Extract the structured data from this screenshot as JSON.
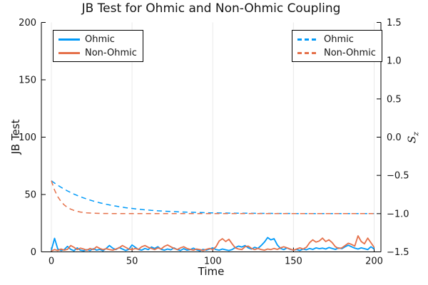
{
  "title": "JB Test for Ohmic and Non-Ohmic Coupling",
  "colors": {
    "ohmic": "#009AF9",
    "non_ohmic": "#E5714B",
    "grid": "#E9E9E9",
    "axis": "#000000",
    "text": "#141414"
  },
  "legends": {
    "left": {
      "items": [
        {
          "label": "Ohmic",
          "style": "solid",
          "color_key": "ohmic"
        },
        {
          "label": "Non-Ohmic",
          "style": "solid",
          "color_key": "non_ohmic"
        }
      ]
    },
    "right": {
      "items": [
        {
          "label": "Ohmic",
          "style": "dashed",
          "color_key": "ohmic"
        },
        {
          "label": "Non-Ohmic",
          "style": "dashed",
          "color_key": "non_ohmic"
        }
      ]
    }
  },
  "chart_data": {
    "type": "line",
    "title": "JB Test for Ohmic and Non-Ohmic Coupling",
    "xlabel": "Time",
    "ylabel_left": "JB Test",
    "ylabel_right": "S_z",
    "ylabel_right_main": "S",
    "ylabel_right_sub": "z",
    "xlim": [
      0,
      200
    ],
    "ylim_left": [
      0,
      200
    ],
    "ylim_right": [
      -1.5,
      1.5
    ],
    "grid": "vertical-only",
    "legend_positions": [
      "top-left",
      "top-right-inner"
    ],
    "xticks": [
      0,
      50,
      100,
      150,
      200
    ],
    "xtick_labels": [
      "0",
      "50",
      "100",
      "150",
      "200"
    ],
    "yticks_left": [
      0,
      50,
      100,
      150,
      200
    ],
    "ytick_left_labels": [
      "0",
      "50",
      "100",
      "150",
      "200"
    ],
    "yticks_right": [
      -1.5,
      -1.0,
      -0.5,
      0.0,
      0.5,
      1.0,
      1.5
    ],
    "ytick_right_labels": [
      "−1.5",
      "−1.0",
      "−0.5",
      "0.0",
      "0.5",
      "1.0",
      "1.5"
    ],
    "x": [
      0,
      2,
      4,
      6,
      8,
      10,
      12,
      14,
      16,
      18,
      20,
      22,
      24,
      26,
      28,
      30,
      32,
      34,
      36,
      38,
      40,
      42,
      44,
      46,
      48,
      50,
      52,
      54,
      56,
      58,
      60,
      62,
      64,
      66,
      68,
      70,
      72,
      74,
      76,
      78,
      80,
      82,
      84,
      86,
      88,
      90,
      92,
      94,
      96,
      98,
      100,
      102,
      104,
      106,
      108,
      110,
      112,
      114,
      116,
      118,
      120,
      122,
      124,
      126,
      128,
      130,
      132,
      134,
      136,
      138,
      140,
      142,
      144,
      146,
      148,
      150,
      152,
      154,
      156,
      158,
      160,
      162,
      164,
      166,
      168,
      170,
      172,
      174,
      176,
      178,
      180,
      182,
      184,
      186,
      188,
      190,
      192,
      194,
      196,
      198,
      200
    ],
    "series": [
      {
        "name": "Ohmic",
        "axis": "left",
        "style": "solid",
        "color_key": "ohmic",
        "values": [
          1.5,
          11.8,
          2.5,
          1.2,
          2.0,
          4.8,
          2.2,
          1.0,
          3.5,
          1.5,
          1.0,
          2.0,
          1.2,
          2.8,
          1.5,
          2.2,
          1.0,
          3.0,
          5.5,
          3.2,
          2.0,
          3.8,
          2.5,
          1.2,
          2.2,
          6.0,
          4.0,
          2.0,
          1.5,
          3.0,
          2.0,
          4.2,
          3.0,
          4.5,
          2.2,
          1.5,
          2.5,
          1.8,
          3.5,
          2.0,
          1.2,
          2.8,
          1.5,
          2.0,
          3.2,
          1.8,
          1.0,
          2.2,
          1.5,
          2.5,
          3.5,
          2.0,
          1.5,
          2.5,
          1.8,
          1.2,
          2.0,
          3.8,
          5.0,
          4.2,
          5.5,
          3.5,
          2.5,
          4.0,
          3.0,
          5.5,
          8.5,
          12.5,
          10.5,
          11.5,
          6.0,
          3.0,
          2.0,
          3.5,
          2.2,
          1.5,
          2.0,
          1.2,
          2.5,
          1.8,
          3.0,
          2.2,
          3.5,
          2.8,
          3.2,
          2.5,
          3.8,
          3.0,
          2.2,
          3.5,
          2.8,
          4.5,
          5.8,
          4.5,
          3.2,
          2.5,
          3.5,
          2.8,
          2.0,
          4.5,
          2.5
        ]
      },
      {
        "name": "Non-Ohmic",
        "axis": "left",
        "style": "solid",
        "color_key": "non_ohmic",
        "values": [
          0.8,
          2.0,
          1.2,
          2.5,
          1.5,
          2.2,
          5.5,
          4.0,
          2.0,
          3.2,
          2.5,
          1.5,
          3.0,
          2.0,
          4.5,
          3.0,
          2.0,
          2.8,
          2.0,
          1.5,
          2.5,
          3.5,
          5.5,
          4.0,
          2.5,
          2.0,
          3.0,
          2.2,
          4.5,
          5.5,
          4.0,
          3.0,
          2.0,
          3.5,
          2.5,
          4.8,
          6.0,
          4.5,
          3.0,
          2.0,
          3.5,
          4.5,
          3.0,
          2.2,
          1.5,
          2.5,
          2.0,
          1.2,
          2.2,
          3.0,
          2.0,
          4.5,
          9.5,
          11.5,
          9.0,
          11.0,
          7.0,
          3.5,
          2.5,
          2.0,
          4.5,
          5.0,
          3.0,
          2.0,
          3.0,
          2.0,
          1.5,
          2.5,
          2.0,
          3.0,
          2.2,
          3.5,
          4.5,
          3.5,
          2.5,
          1.5,
          2.5,
          3.5,
          2.5,
          4.0,
          8.0,
          10.5,
          8.5,
          9.5,
          12.0,
          9.0,
          10.5,
          8.0,
          4.5,
          3.0,
          3.5,
          5.5,
          7.5,
          6.5,
          5.0,
          14.0,
          9.0,
          7.0,
          12.0,
          8.0,
          4.0
        ]
      },
      {
        "name": "Ohmic",
        "axis": "right",
        "style": "dashed",
        "color_key": "ohmic",
        "values": [
          -0.57,
          -0.601,
          -0.629,
          -0.656,
          -0.68,
          -0.703,
          -0.724,
          -0.744,
          -0.762,
          -0.779,
          -0.795,
          -0.809,
          -0.823,
          -0.836,
          -0.847,
          -0.858,
          -0.868,
          -0.878,
          -0.886,
          -0.895,
          -0.902,
          -0.909,
          -0.916,
          -0.922,
          -0.927,
          -0.932,
          -0.937,
          -0.942,
          -0.946,
          -0.95,
          -0.953,
          -0.957,
          -0.96,
          -0.963,
          -0.965,
          -0.968,
          -0.97,
          -0.972,
          -0.974,
          -0.976,
          -0.978,
          -0.979,
          -0.981,
          -0.982,
          -0.983,
          -0.985,
          -0.986,
          -0.987,
          -0.988,
          -0.989,
          -0.989,
          -0.99,
          -0.991,
          -0.992,
          -0.992,
          -0.993,
          -0.993,
          -0.994,
          -0.994,
          -0.995,
          -0.995,
          -0.995,
          -0.996,
          -0.996,
          -0.996,
          -0.997,
          -0.997,
          -0.997,
          -0.997,
          -0.998,
          -0.998,
          -0.998,
          -0.998,
          -0.998,
          -0.998,
          -0.999,
          -0.999,
          -0.999,
          -0.999,
          -0.999,
          -0.999,
          -0.999,
          -0.999,
          -0.999,
          -0.999,
          -0.999,
          -0.999,
          -0.999,
          -0.999,
          -0.999,
          -1.0,
          -1.0,
          -1.0,
          -1.0,
          -1.0,
          -1.0,
          -1.0,
          -1.0,
          -1.0,
          -1.0,
          -1.0
        ]
      },
      {
        "name": "Non-Ohmic",
        "axis": "right",
        "style": "dashed",
        "color_key": "non_ohmic",
        "values": [
          -0.57,
          -0.692,
          -0.779,
          -0.842,
          -0.887,
          -0.919,
          -0.942,
          -0.958,
          -0.97,
          -0.979,
          -0.985,
          -0.989,
          -0.992,
          -0.994,
          -0.996,
          -0.997,
          -0.998,
          -0.998,
          -0.999,
          -0.999,
          -0.999,
          -1.0,
          -1.0,
          -1.0,
          -1.0,
          -1.0,
          -1.0,
          -1.0,
          -1.0,
          -1.0,
          -1.0,
          -1.0,
          -1.0,
          -1.0,
          -1.0,
          -1.0,
          -1.0,
          -1.0,
          -1.0,
          -1.0,
          -1.0,
          -1.0,
          -1.0,
          -1.0,
          -1.0,
          -1.0,
          -1.0,
          -1.0,
          -1.0,
          -1.0,
          -1.0,
          -1.0,
          -1.0,
          -1.0,
          -1.0,
          -1.0,
          -1.0,
          -1.0,
          -1.0,
          -1.0,
          -1.0,
          -1.0,
          -1.0,
          -1.0,
          -1.0,
          -1.0,
          -1.0,
          -1.0,
          -1.0,
          -1.0,
          -1.0,
          -1.0,
          -1.0,
          -1.0,
          -1.0,
          -1.0,
          -1.0,
          -1.0,
          -1.0,
          -1.0,
          -1.0,
          -1.0,
          -1.0,
          -1.0,
          -1.0,
          -1.0,
          -1.0,
          -1.0,
          -1.0,
          -1.0,
          -1.0,
          -1.0,
          -1.0,
          -1.0,
          -1.0,
          -1.0,
          -1.0,
          -1.0,
          -1.0,
          -1.0,
          -1.0
        ]
      }
    ]
  }
}
